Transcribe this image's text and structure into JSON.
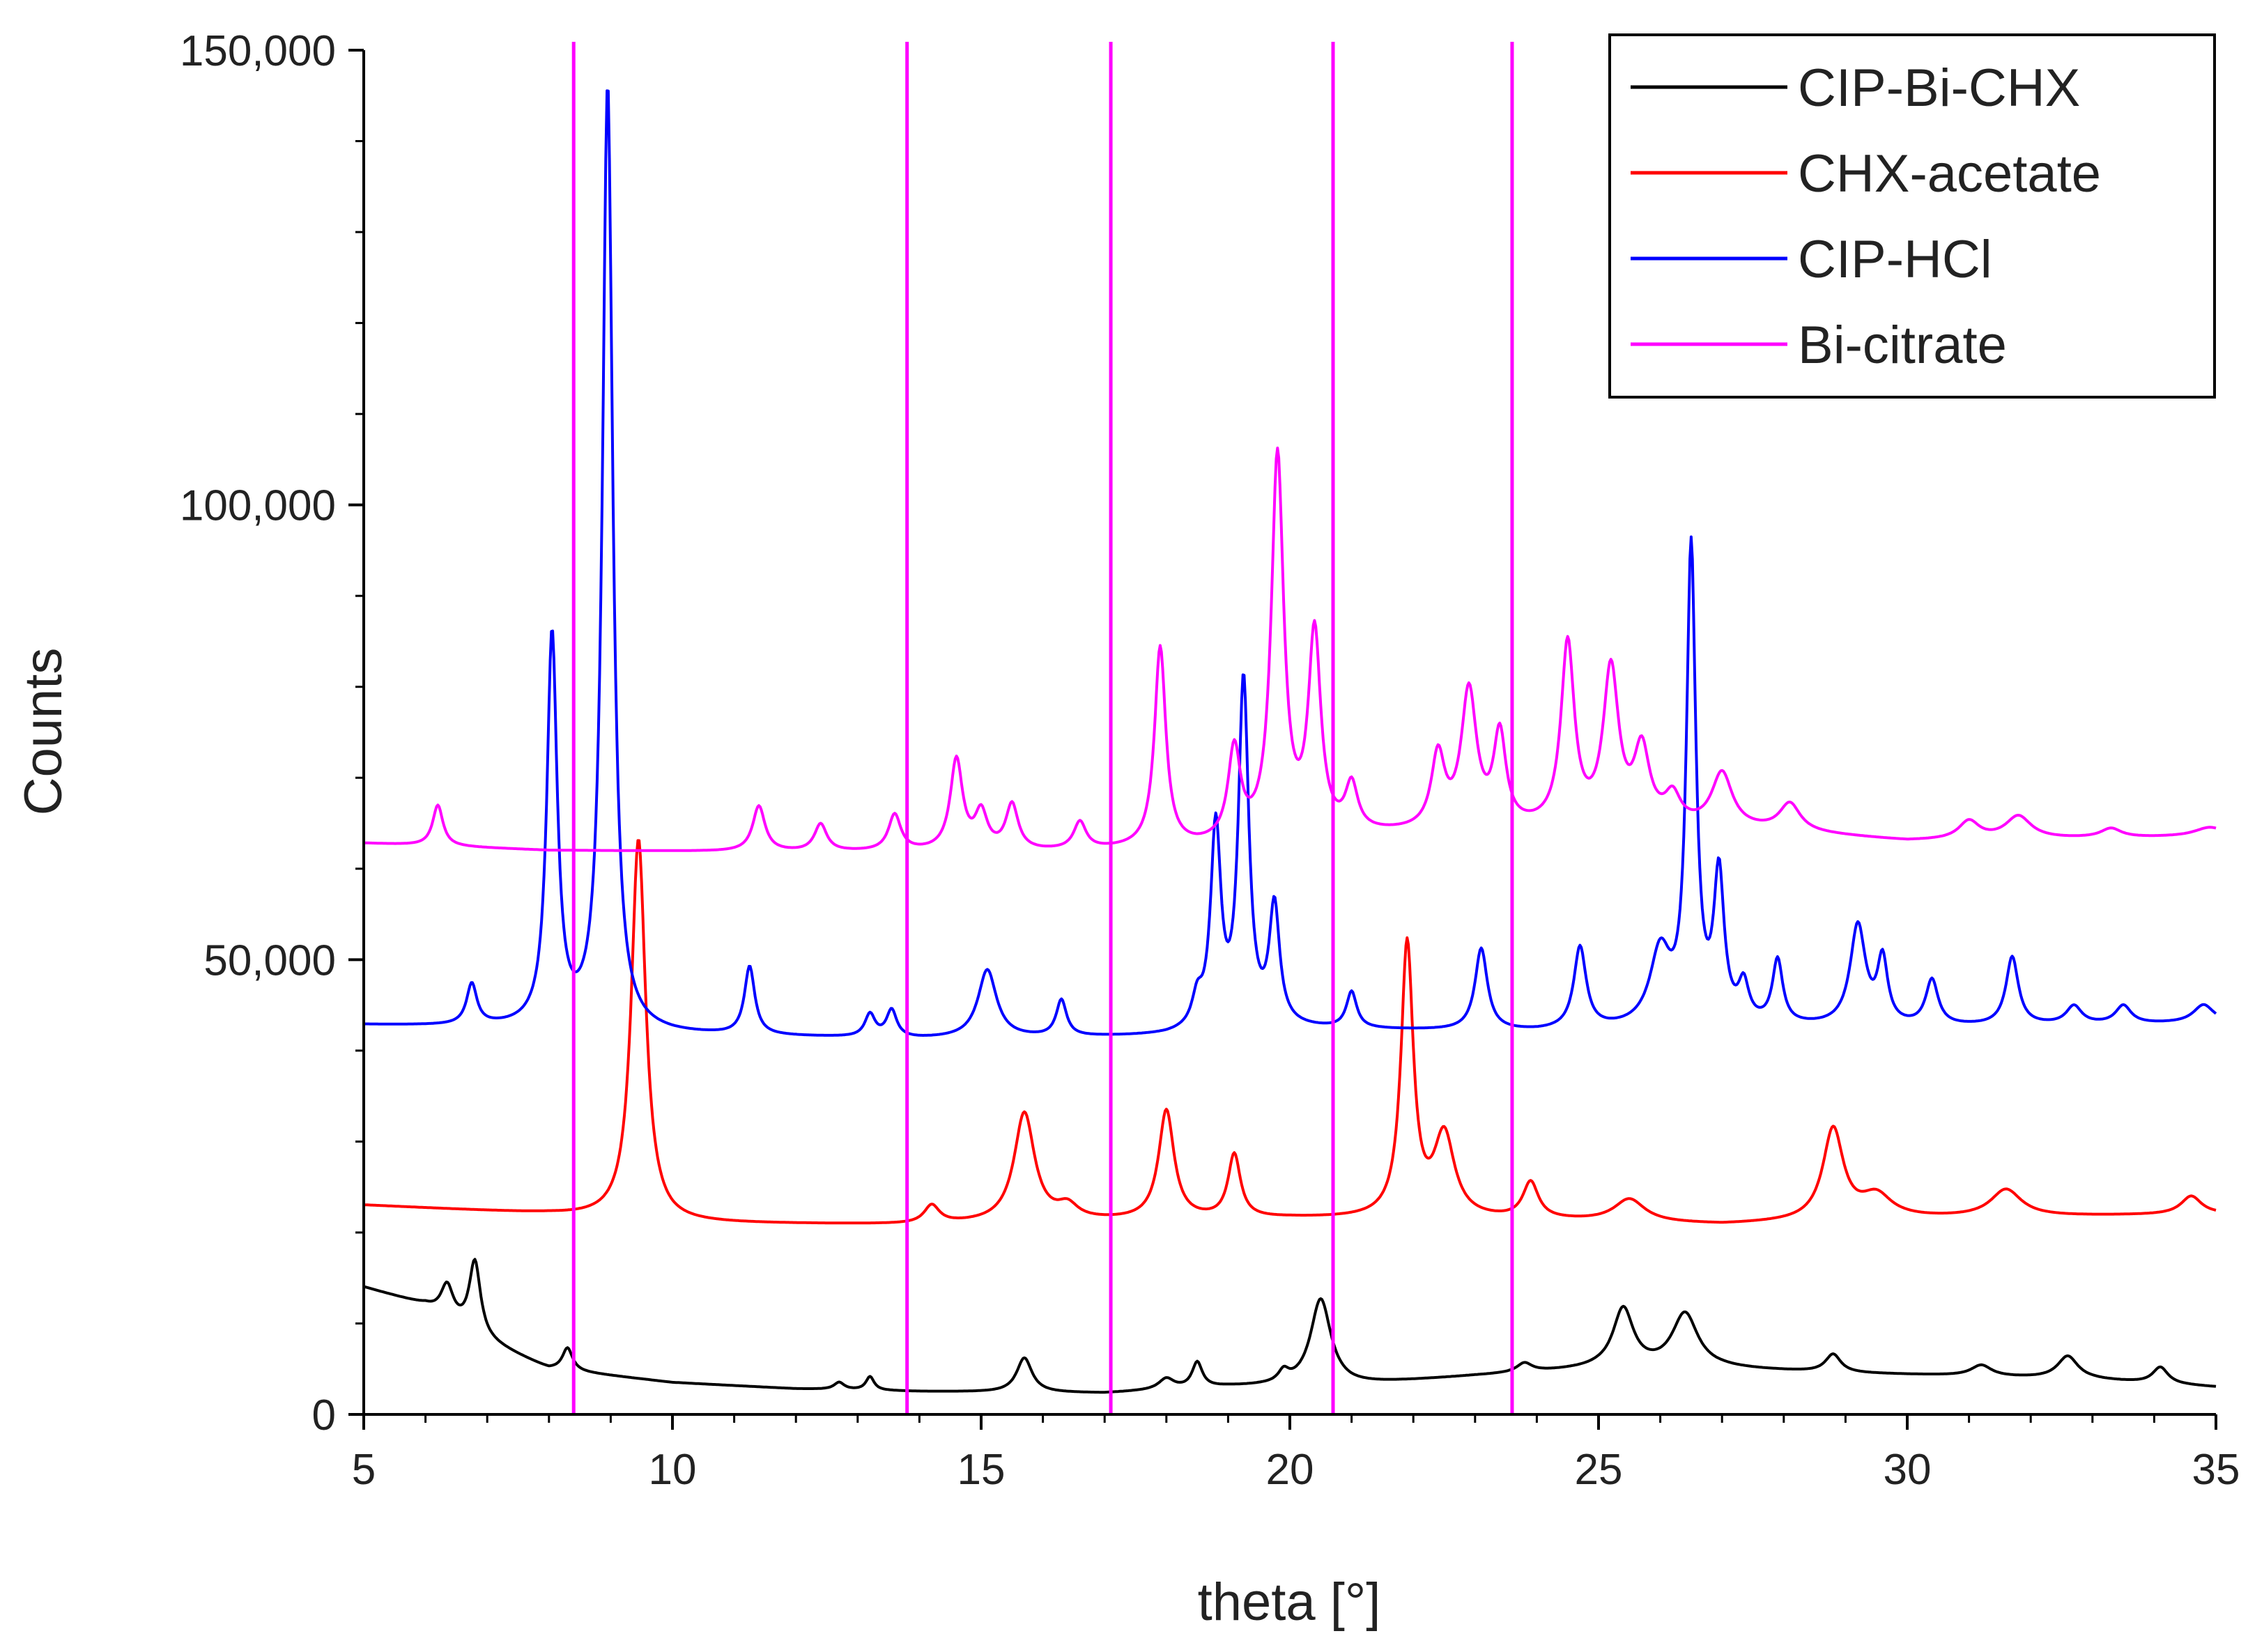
{
  "chart_data": {
    "type": "line",
    "xlabel": "theta [°]",
    "ylabel": "Counts",
    "xlim": [
      5,
      35
    ],
    "ylim": [
      0,
      150000
    ],
    "x_ticks": [
      5,
      10,
      15,
      20,
      25,
      30,
      35
    ],
    "x_tick_labels": [
      "5",
      "10",
      "15",
      "20",
      "25",
      "30",
      "35"
    ],
    "y_ticks": [
      0,
      50000,
      100000,
      150000
    ],
    "y_tick_labels": [
      "0",
      "50,000",
      "100,000",
      "150,000"
    ],
    "grid": false,
    "legend_position": "top-right",
    "reference_lines": {
      "color": "#ff00ff",
      "x": [
        8.4,
        13.8,
        17.1,
        20.7,
        23.6
      ]
    },
    "series": [
      {
        "name": "CIP-Bi-CHX",
        "color": "#000000",
        "baseline": [
          [
            5,
            14000
          ],
          [
            6,
            12000
          ],
          [
            7,
            8000
          ],
          [
            8,
            5000
          ],
          [
            10,
            3500
          ],
          [
            12,
            2800
          ],
          [
            14,
            2500
          ],
          [
            17,
            2300
          ],
          [
            19,
            3000
          ],
          [
            21,
            3200
          ],
          [
            23,
            4200
          ],
          [
            25,
            5000
          ],
          [
            27,
            5000
          ],
          [
            29,
            4500
          ],
          [
            31,
            4200
          ],
          [
            33,
            3800
          ],
          [
            35,
            3000
          ]
        ],
        "peaks": [
          [
            6.35,
            3500,
            0.12
          ],
          [
            6.8,
            8000,
            0.11
          ],
          [
            8.3,
            2500,
            0.1
          ],
          [
            12.7,
            800,
            0.1
          ],
          [
            13.2,
            1500,
            0.08
          ],
          [
            15.7,
            3800,
            0.15
          ],
          [
            18.0,
            1200,
            0.15
          ],
          [
            18.5,
            2800,
            0.1
          ],
          [
            19.9,
            1200,
            0.1
          ],
          [
            20.5,
            9500,
            0.2
          ],
          [
            23.8,
            1000,
            0.15
          ],
          [
            25.4,
            6500,
            0.2
          ],
          [
            26.4,
            6000,
            0.25
          ],
          [
            28.8,
            2000,
            0.15
          ],
          [
            31.2,
            1200,
            0.2
          ],
          [
            32.6,
            2500,
            0.2
          ],
          [
            34.1,
            1800,
            0.15
          ]
        ]
      },
      {
        "name": "CHX-acetate",
        "color": "#ff0000",
        "baseline": [
          [
            5,
            23000
          ],
          [
            8,
            22000
          ],
          [
            10,
            21000
          ],
          [
            14,
            20800
          ],
          [
            17,
            21200
          ],
          [
            20,
            21500
          ],
          [
            24,
            21300
          ],
          [
            27,
            20800
          ],
          [
            30,
            21500
          ],
          [
            35,
            22000
          ]
        ],
        "peaks": [
          [
            9.45,
            42000,
            0.14
          ],
          [
            14.2,
            2000,
            0.15
          ],
          [
            15.7,
            12000,
            0.2
          ],
          [
            16.4,
            1500,
            0.2
          ],
          [
            18.0,
            12000,
            0.15
          ],
          [
            19.1,
            7000,
            0.12
          ],
          [
            21.9,
            30000,
            0.12
          ],
          [
            22.5,
            9000,
            0.2
          ],
          [
            23.9,
            4000,
            0.15
          ],
          [
            25.5,
            2500,
            0.3
          ],
          [
            28.8,
            10000,
            0.2
          ],
          [
            29.5,
            2500,
            0.3
          ],
          [
            31.6,
            3000,
            0.3
          ],
          [
            34.6,
            2000,
            0.2
          ]
        ]
      },
      {
        "name": "CIP-HCl",
        "color": "#0000ff",
        "baseline": [
          [
            5,
            42800
          ],
          [
            7,
            42500
          ],
          [
            10,
            41700
          ],
          [
            14,
            41200
          ],
          [
            18,
            41500
          ],
          [
            20,
            42300
          ],
          [
            24,
            42000
          ],
          [
            27,
            42500
          ],
          [
            30,
            42500
          ],
          [
            35,
            43000
          ]
        ],
        "peaks": [
          [
            6.75,
            4500,
            0.1
          ],
          [
            8.05,
            43000,
            0.1
          ],
          [
            8.95,
            104000,
            0.1
          ],
          [
            11.25,
            7500,
            0.1
          ],
          [
            13.2,
            2500,
            0.1
          ],
          [
            13.55,
            3000,
            0.1
          ],
          [
            15.1,
            7500,
            0.18
          ],
          [
            16.3,
            4000,
            0.1
          ],
          [
            18.5,
            3000,
            0.1
          ],
          [
            18.8,
            22000,
            0.1
          ],
          [
            19.25,
            38000,
            0.1
          ],
          [
            19.75,
            13000,
            0.1
          ],
          [
            21.0,
            4000,
            0.1
          ],
          [
            23.1,
            9000,
            0.12
          ],
          [
            24.7,
            9000,
            0.12
          ],
          [
            26.0,
            8000,
            0.2
          ],
          [
            26.5,
            52000,
            0.09
          ],
          [
            26.95,
            16000,
            0.1
          ],
          [
            27.35,
            4000,
            0.1
          ],
          [
            27.9,
            7000,
            0.1
          ],
          [
            29.2,
            11000,
            0.15
          ],
          [
            29.6,
            7000,
            0.1
          ],
          [
            30.4,
            5000,
            0.12
          ],
          [
            31.7,
            7500,
            0.12
          ],
          [
            32.7,
            2000,
            0.15
          ],
          [
            33.5,
            2000,
            0.15
          ],
          [
            34.8,
            2000,
            0.2
          ]
        ]
      },
      {
        "name": "Bi-citrate",
        "color": "#ff00ff",
        "baseline": [
          [
            5,
            62800
          ],
          [
            8,
            62000
          ],
          [
            12,
            61800
          ],
          [
            16,
            61800
          ],
          [
            18.5,
            62200
          ],
          [
            21,
            63500
          ],
          [
            23,
            64000
          ],
          [
            26,
            64500
          ],
          [
            28,
            64000
          ],
          [
            30,
            63000
          ],
          [
            35,
            63500
          ]
        ],
        "peaks": [
          [
            6.2,
            4500,
            0.1
          ],
          [
            11.4,
            5000,
            0.12
          ],
          [
            12.4,
            3000,
            0.12
          ],
          [
            13.6,
            4000,
            0.12
          ],
          [
            14.6,
            10000,
            0.12
          ],
          [
            15.0,
            4000,
            0.12
          ],
          [
            15.5,
            5000,
            0.12
          ],
          [
            16.6,
            3000,
            0.12
          ],
          [
            17.9,
            22000,
            0.11
          ],
          [
            19.1,
            10000,
            0.12
          ],
          [
            19.8,
            42000,
            0.12
          ],
          [
            20.4,
            22000,
            0.12
          ],
          [
            21.0,
            5000,
            0.12
          ],
          [
            22.4,
            8000,
            0.13
          ],
          [
            22.9,
            15000,
            0.15
          ],
          [
            23.4,
            10000,
            0.12
          ],
          [
            24.5,
            20000,
            0.13
          ],
          [
            25.2,
            17000,
            0.15
          ],
          [
            25.7,
            8000,
            0.15
          ],
          [
            26.2,
            3000,
            0.15
          ],
          [
            27.0,
            6000,
            0.2
          ],
          [
            28.1,
            3000,
            0.2
          ],
          [
            31.0,
            2000,
            0.2
          ],
          [
            31.8,
            2500,
            0.25
          ],
          [
            33.3,
            1000,
            0.2
          ],
          [
            34.9,
            1000,
            0.3
          ]
        ]
      }
    ]
  }
}
